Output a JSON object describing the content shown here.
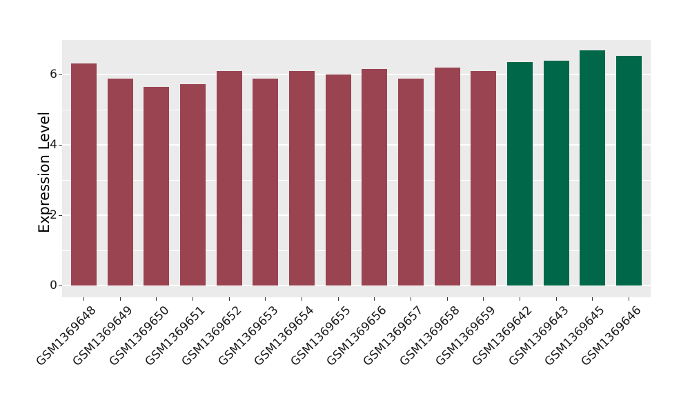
{
  "figure": {
    "background": "#FFFFFF"
  },
  "chart_data": {
    "type": "bar",
    "title": "",
    "xlabel": "",
    "ylabel": "Expression Level",
    "categories": [
      "GSM1369648",
      "GSM1369649",
      "GSM1369650",
      "GSM1369651",
      "GSM1369652",
      "GSM1369653",
      "GSM1369654",
      "GSM1369655",
      "GSM1369656",
      "GSM1369657",
      "GSM1369658",
      "GSM1369659",
      "GSM1369642",
      "GSM1369643",
      "GSM1369645",
      "GSM1369646"
    ],
    "values": [
      6.31,
      5.89,
      5.64,
      5.73,
      6.1,
      5.89,
      6.09,
      6.0,
      6.16,
      5.89,
      6.19,
      6.1,
      6.35,
      6.4,
      6.68,
      6.52
    ],
    "groups": [
      0,
      0,
      0,
      0,
      0,
      0,
      0,
      0,
      0,
      0,
      0,
      0,
      1,
      1,
      1,
      1
    ],
    "group_colors": [
      "#9A4452",
      "#006849"
    ],
    "yticks": [
      0,
      2,
      4,
      6
    ],
    "yticks_minor": [
      1,
      3,
      5,
      7
    ],
    "ylim": [
      0,
      7.0
    ],
    "grid": "on",
    "legend_position": "none",
    "panel_background": "#EBEBEB",
    "grid_color": "#FFFFFF",
    "tick_color": "#333333",
    "text_color": "#1A1A1A"
  }
}
